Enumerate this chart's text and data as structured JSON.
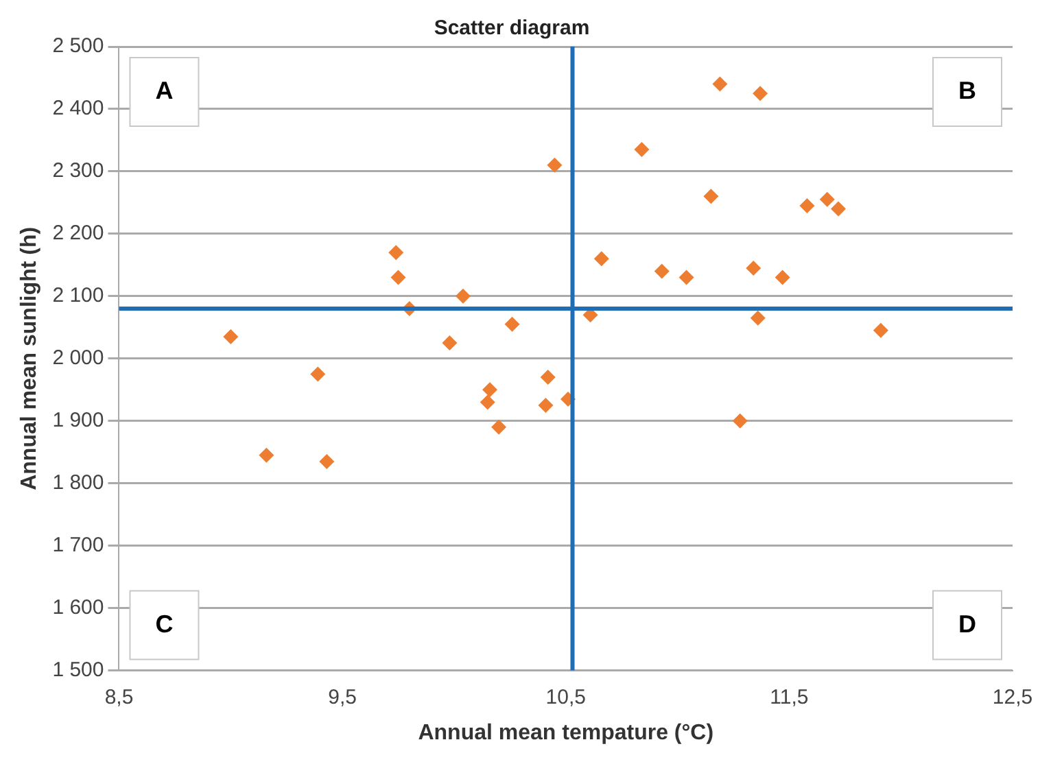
{
  "chart_data": {
    "type": "scatter",
    "title": "Scatter diagram",
    "xlabel": "Annual mean tempature (°C)",
    "ylabel": "Annual mean sunlight (h)",
    "annotations": [
      "A",
      "B",
      "C",
      "D"
    ],
    "series": [
      {
        "color": "#ed7d31",
        "x": [
          10.45,
          9.74,
          9.75,
          9.8,
          10.04,
          10.26,
          9.0,
          9.98,
          9.39,
          10.42,
          10.16,
          10.15,
          10.41,
          10.51,
          10.2,
          9.16,
          9.43,
          11.19,
          11.37,
          10.84,
          11.15,
          11.58,
          11.67,
          11.72,
          10.66,
          10.93,
          11.04,
          11.34,
          11.47,
          10.61,
          11.36,
          11.91,
          11.28
        ],
        "values": [
          2310,
          2170,
          2130,
          2080,
          2100,
          2055,
          2035,
          2025,
          1975,
          1970,
          1950,
          1930,
          1925,
          1935,
          1890,
          1845,
          1835,
          2440,
          2425,
          2335,
          2260,
          2245,
          2255,
          2240,
          2160,
          2140,
          2130,
          2145,
          2130,
          2070,
          2065,
          2045,
          1900
        ]
      }
    ],
    "marker": "diamond",
    "grid": "y",
    "legend": false,
    "xlim": [
      8.5,
      12.5
    ],
    "xticks": [
      {
        "value": 8.5,
        "label": "8,5"
      },
      {
        "value": 9.5,
        "label": "9,5"
      },
      {
        "value": 10.5,
        "label": "10,5"
      },
      {
        "value": 11.5,
        "label": "11,5"
      },
      {
        "value": 12.5,
        "label": "12,5"
      }
    ],
    "ylim": [
      1500,
      2500
    ],
    "yticks": [
      {
        "value": 1500,
        "label": "1 500"
      },
      {
        "value": 1600,
        "label": "1 600"
      },
      {
        "value": 1700,
        "label": "1 700"
      },
      {
        "value": 1800,
        "label": "1 800"
      },
      {
        "value": 1900,
        "label": "1 900"
      },
      {
        "value": 2000,
        "label": "2 000"
      },
      {
        "value": 2100,
        "label": "2 100"
      },
      {
        "value": 2200,
        "label": "2 200"
      },
      {
        "value": 2300,
        "label": "2 300"
      },
      {
        "value": 2400,
        "label": "2 400"
      },
      {
        "value": 2500,
        "label": "2 500"
      }
    ],
    "ref_lines": [
      {
        "axis": "x",
        "value": 10.53,
        "color": "#1f6db5"
      },
      {
        "axis": "y",
        "value": 2080,
        "color": "#1f6db5"
      }
    ]
  }
}
